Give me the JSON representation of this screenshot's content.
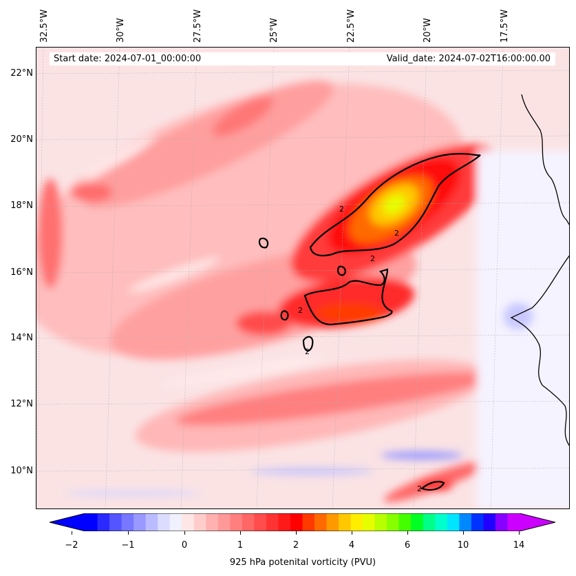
{
  "header": {
    "start_date": "Start date: 2024-07-01_00:00:00",
    "valid_date": "Valid_date: 2024-07-02T16:00:00.00"
  },
  "map": {
    "lon_labels": [
      "32.5°W",
      "30°W",
      "27.5°W",
      "25°W",
      "22.5°W",
      "20°W",
      "17.5°W"
    ],
    "lat_labels": [
      "22°N",
      "20°N",
      "18°N",
      "16°N",
      "14°N",
      "12°N",
      "10°N"
    ],
    "contour_level_label": "2",
    "variable_field": "925 hPa potential vorticity"
  },
  "colorbar": {
    "label": "925 hPa potenital vorticity (PVU)",
    "tick_labels": [
      "−2",
      "−1",
      "0",
      "1",
      "2",
      "4",
      "6",
      "10",
      "14"
    ],
    "colors": [
      "#0000ff",
      "#2a2aff",
      "#5555ff",
      "#7777ff",
      "#9999ff",
      "#bbbbff",
      "#dcdcff",
      "#f0f0ff",
      "#ffe6e6",
      "#ffcccc",
      "#ffb0b0",
      "#ff9999",
      "#ff7f7f",
      "#ff6666",
      "#ff4c4c",
      "#ff3333",
      "#ff1a1a",
      "#ff0000",
      "#ff3a00",
      "#ff6a00",
      "#ff9900",
      "#ffc800",
      "#ffee00",
      "#e6ff00",
      "#b8ff00",
      "#88ff00",
      "#44ff00",
      "#00ff22",
      "#00ff88",
      "#00ffcc",
      "#00e5ff",
      "#0088ff",
      "#0033ff",
      "#2200ff",
      "#8800ff",
      "#cc00ff"
    ],
    "extend_low_color": "#0000ff",
    "extend_high_color": "#cc00ff"
  }
}
